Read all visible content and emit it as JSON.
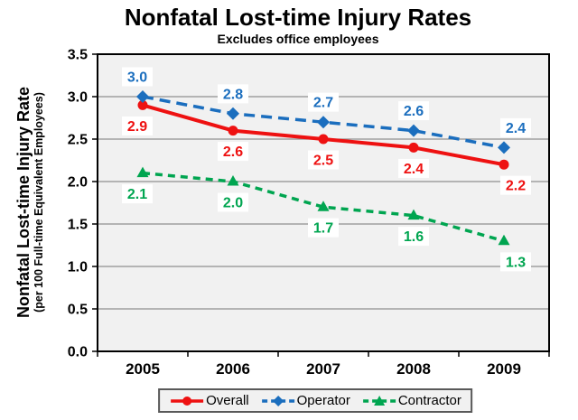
{
  "header": {
    "title": "Nonfatal Lost-time Injury Rates",
    "subtitle": "Excludes office employees"
  },
  "chart_data": {
    "type": "line",
    "title": "Nonfatal Lost-time Injury Rates",
    "subtitle": "Excludes office employees",
    "categories": [
      "2005",
      "2006",
      "2007",
      "2008",
      "2009"
    ],
    "series": [
      {
        "name": "Overall",
        "values": [
          2.9,
          2.6,
          2.5,
          2.4,
          2.2
        ],
        "color": "#ee1111",
        "line_style": "solid",
        "marker": "circle",
        "label_position": "below"
      },
      {
        "name": "Operator",
        "values": [
          3.0,
          2.8,
          2.7,
          2.6,
          2.4
        ],
        "color": "#1b6ebe",
        "line_style": "dashed",
        "marker": "diamond",
        "label_position": "above"
      },
      {
        "name": "Contractor",
        "values": [
          2.1,
          2.0,
          1.7,
          1.6,
          1.3
        ],
        "color": "#00a550",
        "line_style": "dashed",
        "marker": "triangle",
        "label_position": "below"
      }
    ],
    "xlabel": "",
    "ylabel": "Nonfatal Lost-time Injury Rate",
    "ylabel2": "(per 100 Full-time Equivalent Employees)",
    "ylim": [
      0,
      3.5
    ],
    "ytick_step": 0.5,
    "yticks": [
      "0.0",
      "0.5",
      "1.0",
      "1.5",
      "2.0",
      "2.5",
      "3.0",
      "3.5"
    ],
    "grid": true,
    "legend_position": "bottom",
    "data_labels": true,
    "colors": {
      "plot_background": "#f1f1f1",
      "gridline": "#8f8f8f",
      "axis": "#000000",
      "data_label_background": "#ffffff",
      "legend_background": "#f1f1f1",
      "legend_border": "#595959",
      "text": "#000000"
    }
  }
}
